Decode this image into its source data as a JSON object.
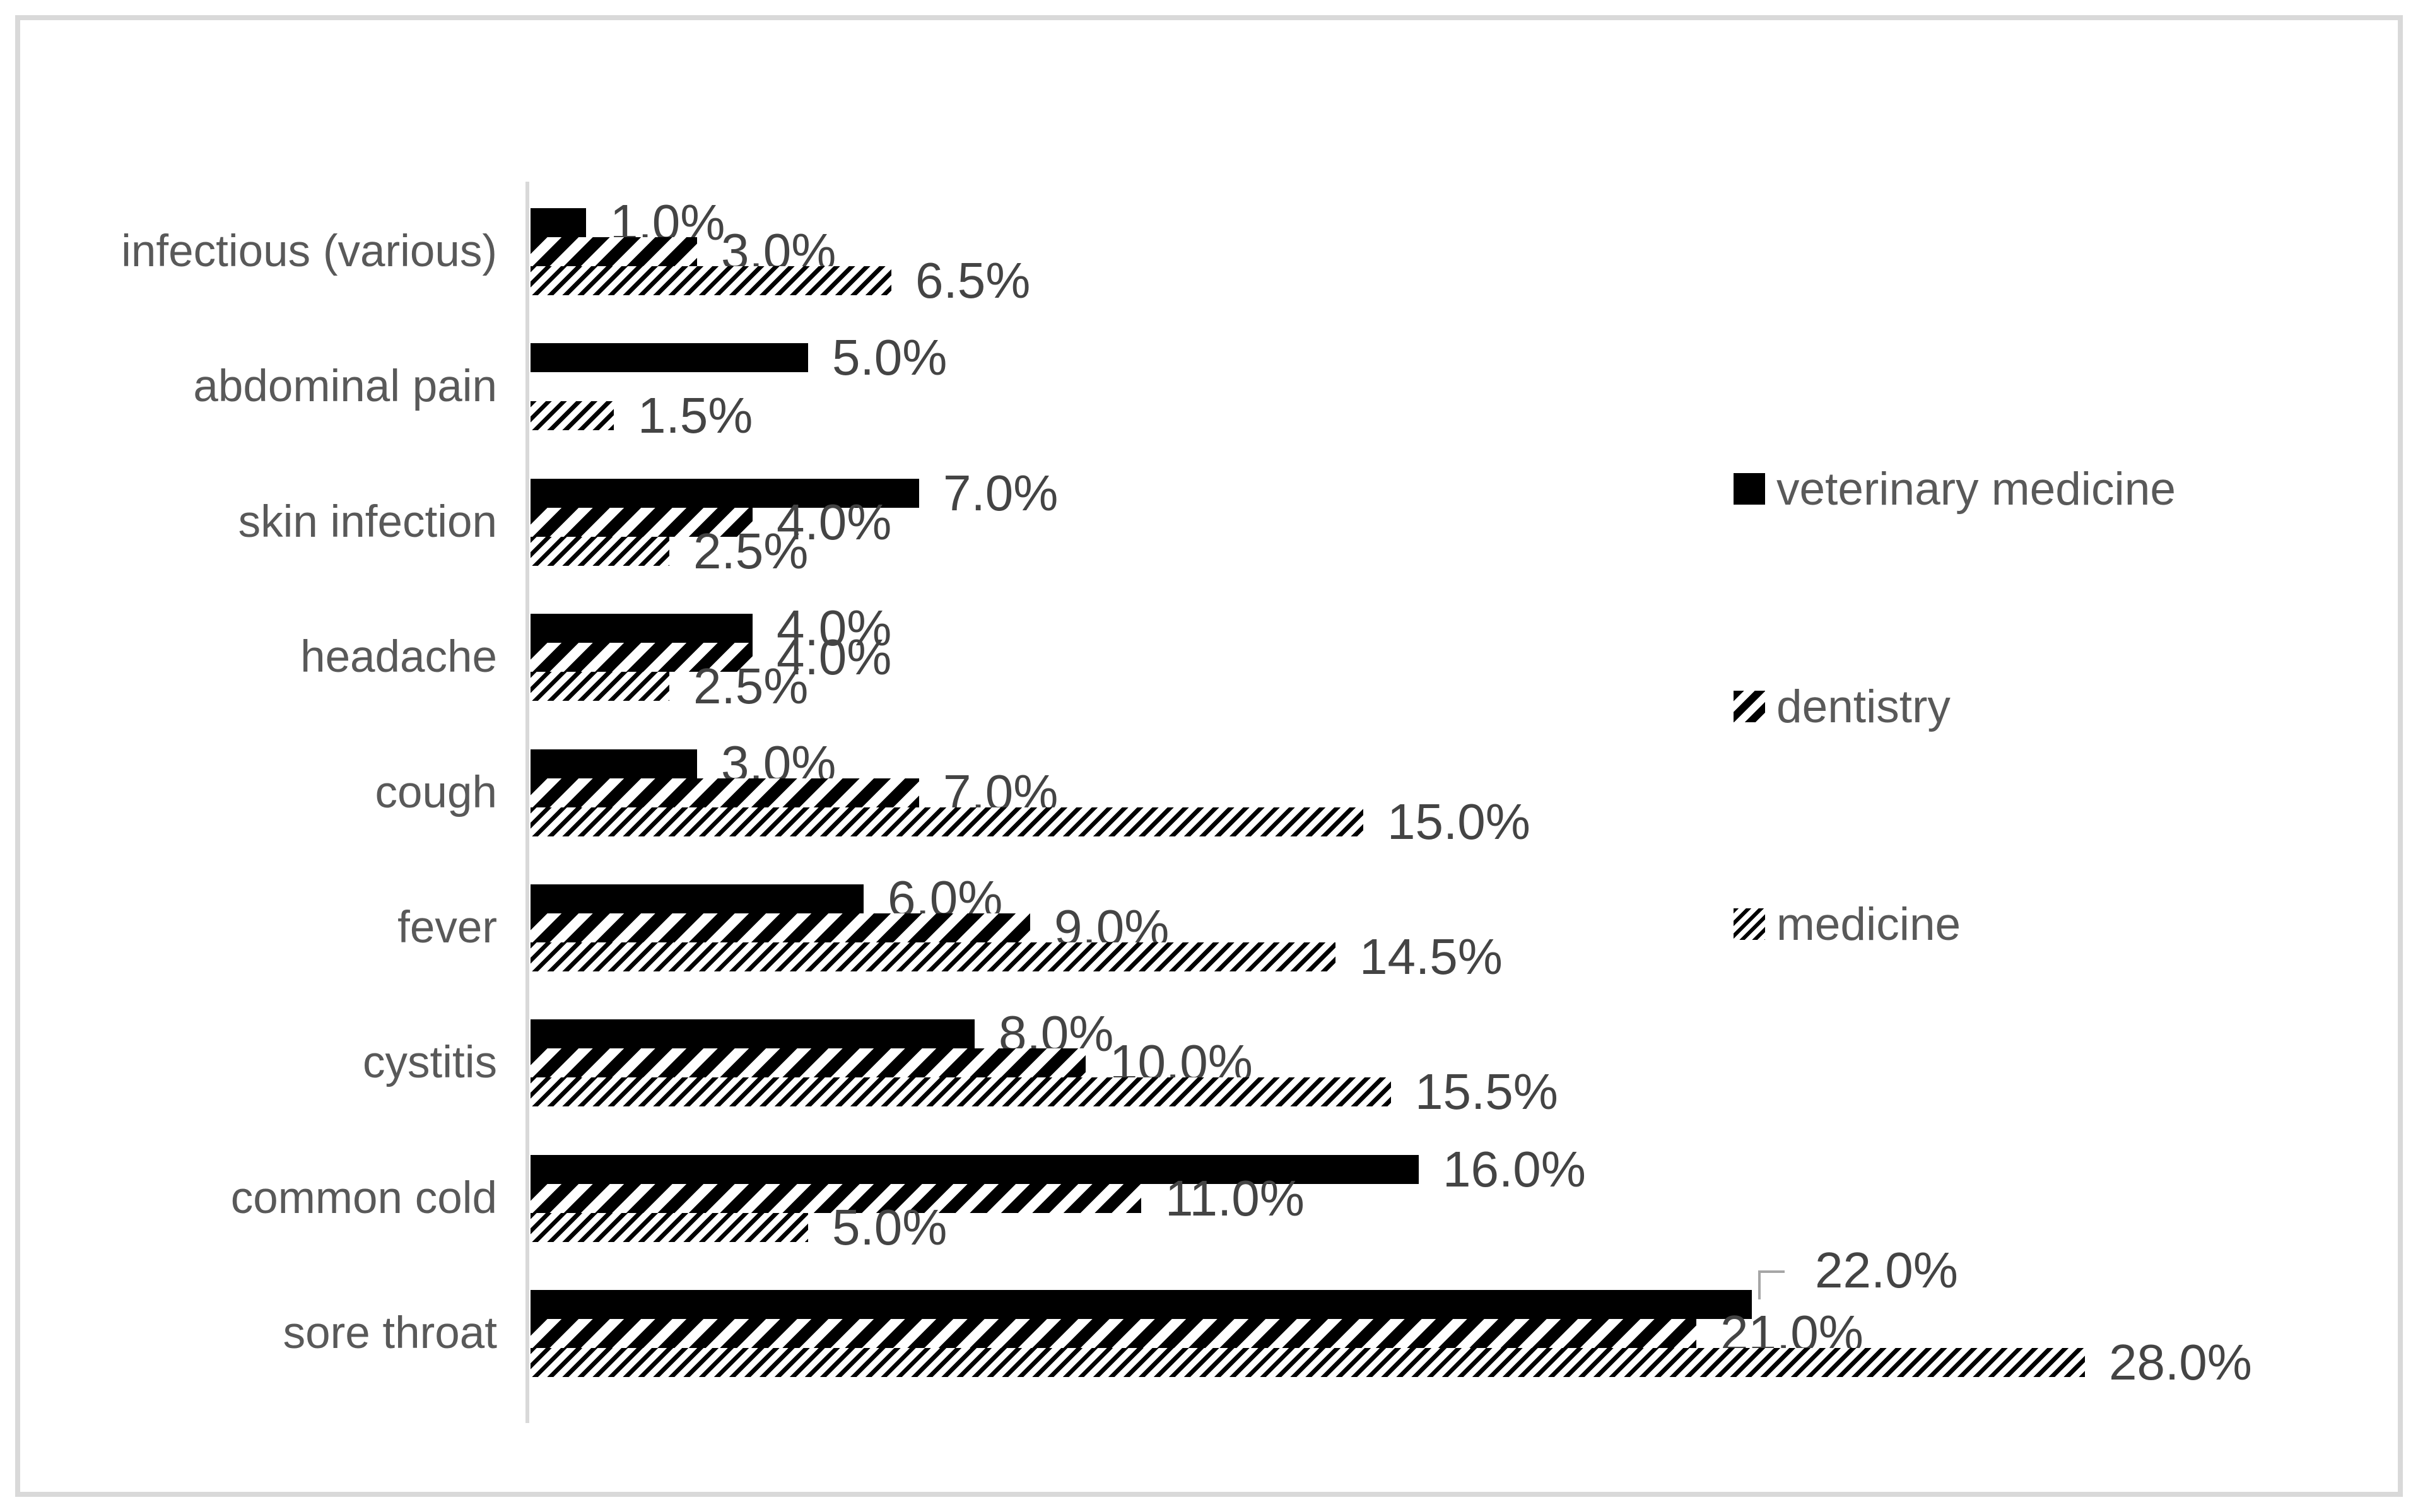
{
  "chart_data": {
    "type": "bar",
    "orientation": "horizontal",
    "title": "",
    "xlabel": "",
    "ylabel": "",
    "value_unit": "%",
    "xlim": [
      0,
      30
    ],
    "grid": false,
    "value_axis_ticks_visible": false,
    "data_labels_visible": true,
    "categories": [
      "infectious (various)",
      "abdominal pain",
      "skin infection",
      "headache",
      "cough",
      "fever",
      "cystitis",
      "common cold",
      "sore throat"
    ],
    "series": [
      {
        "name": "veterinary medicine",
        "pattern": "solid-black",
        "values": [
          1.0,
          5.0,
          7.0,
          4.0,
          3.0,
          6.0,
          8.0,
          16.0,
          22.0
        ],
        "labels": [
          "1.0%",
          "5.0%",
          "7.0%",
          "4.0%",
          "3.0%",
          "6.0%",
          "8.0%",
          "16.0%",
          "22.0%"
        ]
      },
      {
        "name": "dentistry",
        "pattern": "bold-diagonal-hatch",
        "values": [
          3.0,
          0,
          4.0,
          4.0,
          7.0,
          9.0,
          10.0,
          11.0,
          21.0
        ],
        "labels": [
          "3.0%",
          "",
          "4.0%",
          "4.0%",
          "7.0%",
          "9.0%",
          "10.0%",
          "11.0%",
          "21.0%"
        ]
      },
      {
        "name": "medicine",
        "pattern": "fine-diagonal-hatch",
        "values": [
          6.5,
          1.5,
          2.5,
          2.5,
          15.0,
          14.5,
          15.5,
          5.0,
          28.0
        ],
        "labels": [
          "6.5%",
          "1.5%",
          "2.5%",
          "2.5%",
          "15.0%",
          "14.5%",
          "15.5%",
          "5.0%",
          "28.0%"
        ]
      }
    ],
    "legend": {
      "position": "right",
      "entries": [
        "veterinary medicine",
        "dentistry",
        "medicine"
      ]
    },
    "annotations": {
      "callout": {
        "category": "sore throat",
        "series": "veterinary medicine",
        "label": "22.0%",
        "leader_line": true
      }
    },
    "colors": {
      "bar": "#000000",
      "value_label": "#444444",
      "category_label": "#595959",
      "legend_label": "#595959",
      "axis_line": "#d9d9d9",
      "border": "#d9d9d9",
      "leader_line": "#a6a6a6"
    }
  }
}
